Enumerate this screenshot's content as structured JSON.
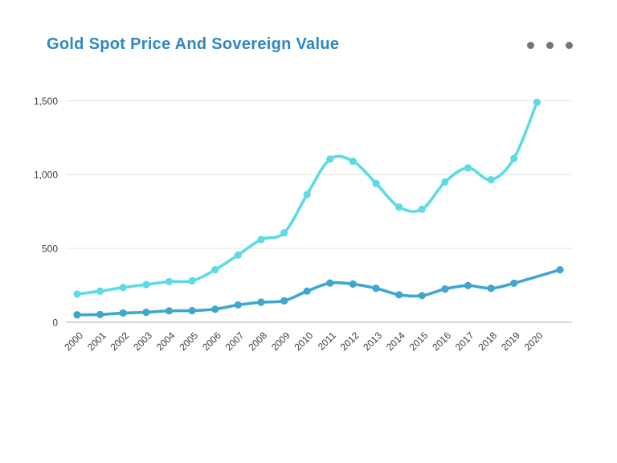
{
  "header": {
    "title": "Gold Spot Price And Sovereign Value",
    "menu_icon": "ellipsis-horizontal-icon"
  },
  "chart_data": {
    "type": "line",
    "title": "Gold Spot Price And Sovereign Value",
    "categories": [
      "2000",
      "2001",
      "2002",
      "2003",
      "2004",
      "2005",
      "2006",
      "2007",
      "2008",
      "2009",
      "2010",
      "2011",
      "2012",
      "2013",
      "2014",
      "2015",
      "2016",
      "2017",
      "2018",
      "2019",
      "2020"
    ],
    "series": [
      {
        "name": "Gold Spot Price",
        "color": "#5CDBE5",
        "values": [
          190,
          210,
          235,
          255,
          275,
          280,
          355,
          455,
          560,
          605,
          865,
          1105,
          1090,
          940,
          780,
          765,
          950,
          1045,
          965,
          1110,
          1490
        ]
      },
      {
        "name": "Sovereign Value",
        "color": "#3DA7CE",
        "values": [
          50,
          52,
          62,
          67,
          77,
          78,
          88,
          117,
          135,
          145,
          210,
          265,
          258,
          230,
          186,
          180,
          225,
          248,
          230,
          264,
          355
        ],
        "last_point_extra_slot": true
      }
    ],
    "xlabel": "",
    "ylabel": "",
    "ylim": [
      0,
      1500
    ],
    "yticks": [
      0,
      500,
      1000,
      1500
    ],
    "ytick_labels": [
      "0",
      "500",
      "1,000",
      "1,500"
    ],
    "grid": "horizontal",
    "legend_position": "none",
    "x_label_rotation": -45,
    "curve": "smooth"
  },
  "colors": {
    "title": "#2E86C3",
    "grid_line": "#e3e3e3",
    "axis_line": "#c9c9c9",
    "tick_text": "#3d3d3d",
    "background": "#ffffff",
    "menu_dots": "#757575"
  }
}
